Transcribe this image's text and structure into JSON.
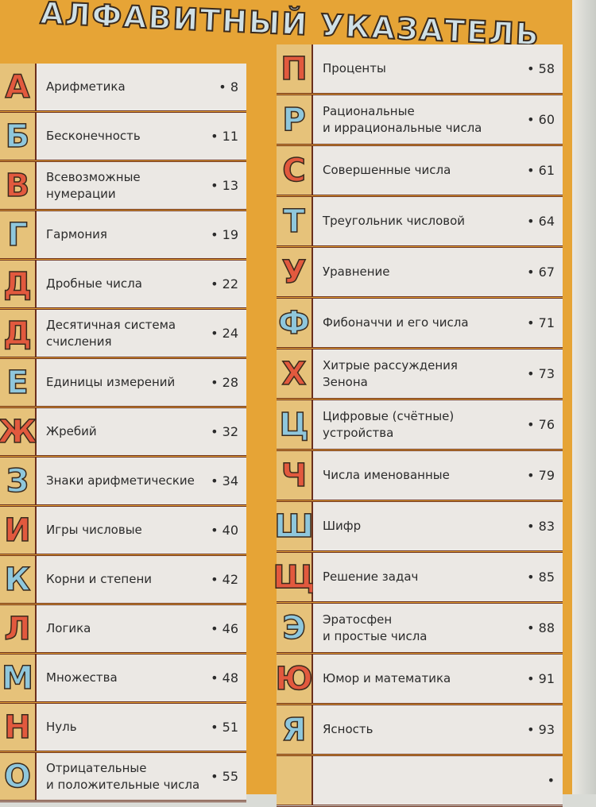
{
  "title": "АЛФАВИТНЫЙ УКАЗАТЕЛЬ",
  "colors": {
    "page": "#e6a436",
    "letter_red": "#e2593e",
    "letter_blue": "#8fc7dc",
    "cell": "#ebe8e4"
  },
  "left": [
    {
      "letter": "А",
      "color": "red",
      "topic": "Арифметика",
      "page": "8"
    },
    {
      "letter": "Б",
      "color": "blue",
      "topic": "Бесконечность",
      "page": "11"
    },
    {
      "letter": "В",
      "color": "red",
      "topic": "Всевозможные\nнумерации",
      "page": "13"
    },
    {
      "letter": "Г",
      "color": "blue",
      "topic": "Гармония",
      "page": "19"
    },
    {
      "letter": "Д",
      "color": "red",
      "topic": "Дробные числа",
      "page": "22"
    },
    {
      "letter": "Д",
      "color": "red",
      "topic": "Десятичная система\nсчисления",
      "page": "24"
    },
    {
      "letter": "Е",
      "color": "blue",
      "topic": "Единицы измерений",
      "page": "28"
    },
    {
      "letter": "Ж",
      "color": "red",
      "topic": "Жребий",
      "page": "32"
    },
    {
      "letter": "З",
      "color": "blue",
      "topic": "Знаки арифметические",
      "page": "34"
    },
    {
      "letter": "И",
      "color": "red",
      "topic": "Игры числовые",
      "page": "40"
    },
    {
      "letter": "К",
      "color": "blue",
      "topic": "Корни и степени",
      "page": "42"
    },
    {
      "letter": "Л",
      "color": "red",
      "topic": "Логика",
      "page": "46"
    },
    {
      "letter": "М",
      "color": "blue",
      "topic": "Множества",
      "page": "48"
    },
    {
      "letter": "Н",
      "color": "red",
      "topic": "Нуль",
      "page": "51"
    },
    {
      "letter": "О",
      "color": "blue",
      "topic": "Отрицательные\nи положительные числа",
      "page": "55"
    }
  ],
  "right": [
    {
      "letter": "П",
      "color": "red",
      "topic": "Проценты",
      "page": "58"
    },
    {
      "letter": "Р",
      "color": "blue",
      "topic": "Рациональные\nи иррациональные числа",
      "page": "60"
    },
    {
      "letter": "С",
      "color": "red",
      "topic": "Совершенные числа",
      "page": "61"
    },
    {
      "letter": "Т",
      "color": "blue",
      "topic": "Треугольник числовой",
      "page": "64"
    },
    {
      "letter": "У",
      "color": "red",
      "topic": "Уравнение",
      "page": "67"
    },
    {
      "letter": "Ф",
      "color": "blue",
      "topic": "Фибоначчи и его числа",
      "page": "71"
    },
    {
      "letter": "Х",
      "color": "red",
      "topic": "Хитрые рассуждения\nЗенона",
      "page": "73"
    },
    {
      "letter": "Ц",
      "color": "blue",
      "topic": "Цифровые (счётные)\nустройства",
      "page": "76"
    },
    {
      "letter": "Ч",
      "color": "red",
      "topic": "Числа именованные",
      "page": "79"
    },
    {
      "letter": "Ш",
      "color": "blue",
      "topic": "Шифр",
      "page": "83"
    },
    {
      "letter": "Щ",
      "color": "red",
      "topic": "Решение задач",
      "page": "85"
    },
    {
      "letter": "Э",
      "color": "blue",
      "topic": "Эратосфен\nи простые числа",
      "page": "88"
    },
    {
      "letter": "Ю",
      "color": "red",
      "topic": "Юмор и математика",
      "page": "91"
    },
    {
      "letter": "Я",
      "color": "blue",
      "topic": "Ясность",
      "page": "93"
    }
  ]
}
